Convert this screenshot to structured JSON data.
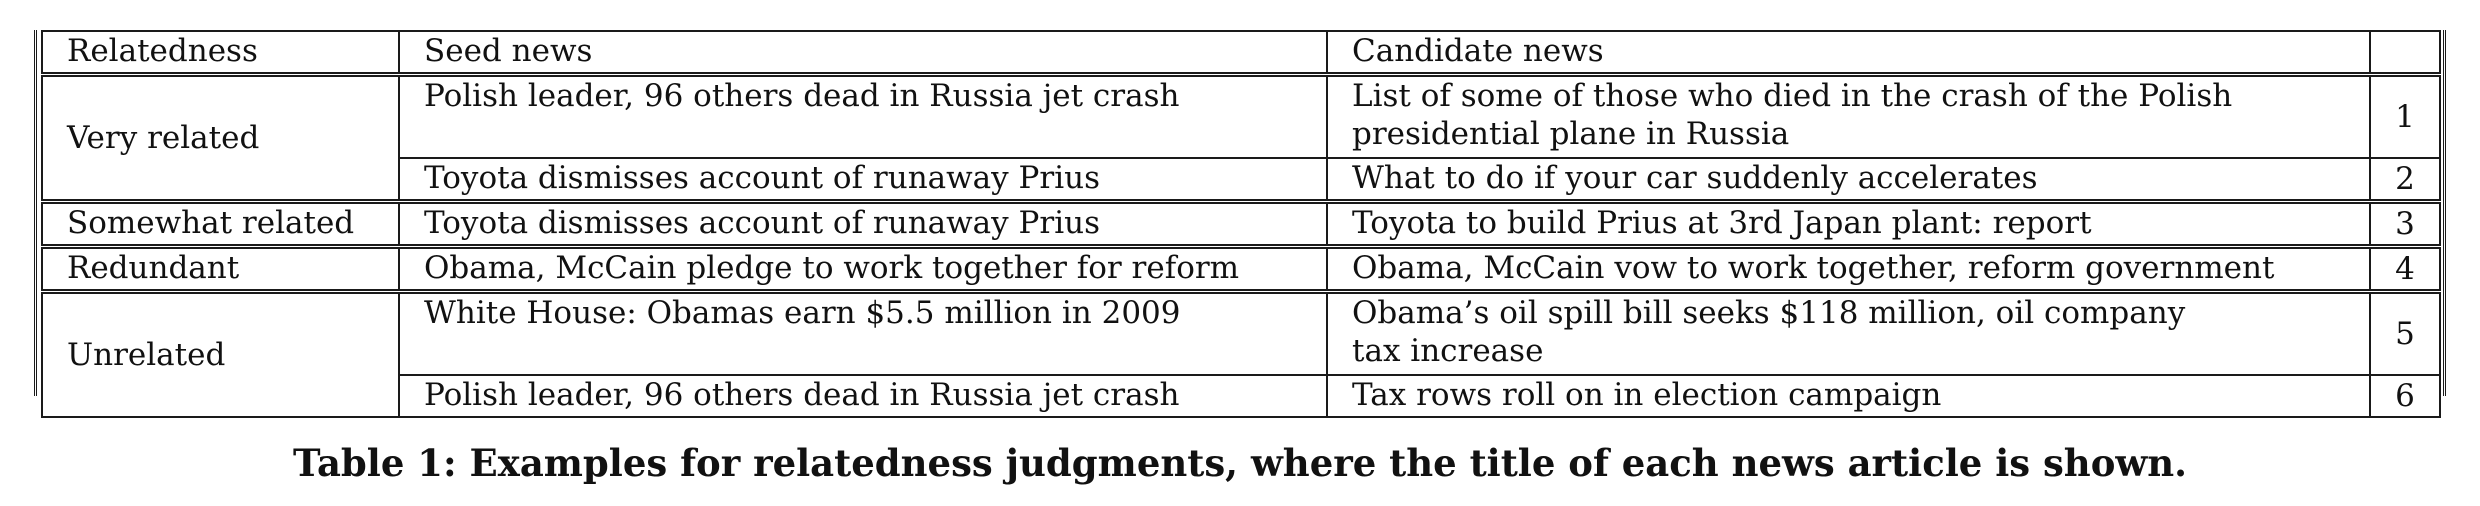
{
  "table": {
    "headers": [
      "Relatedness",
      "Seed news",
      "Candidate news",
      ""
    ],
    "groups": [
      {
        "label": "Very related",
        "rows": [
          {
            "seed": "Polish leader, 96 others dead in Russia jet crash",
            "candidate_line1": "List of some of those who died in the crash of the Polish",
            "candidate_line2": "presidential plane in Russia",
            "id": "1"
          },
          {
            "seed": "Toyota dismisses account of runaway Prius",
            "candidate": "What to do if your car suddenly accelerates",
            "id": "2"
          }
        ]
      },
      {
        "label": "Somewhat related",
        "rows": [
          {
            "seed": "Toyota dismisses account of runaway Prius",
            "candidate": "Toyota to build Prius at 3rd Japan plant: report",
            "id": "3"
          }
        ]
      },
      {
        "label": "Redundant",
        "rows": [
          {
            "seed": "Obama, McCain pledge to work together for reform",
            "candidate": "Obama, McCain vow to work together, reform government",
            "id": "4"
          }
        ]
      },
      {
        "label": "Unrelated",
        "rows": [
          {
            "seed": "White House: Obamas earn $5.5 million in 2009",
            "candidate_line1": "Obama’s oil spill bill seeks $118 million, oil company",
            "candidate_line2": "tax increase",
            "id": "5"
          },
          {
            "seed": "Polish leader, 96 others dead in Russia jet crash",
            "candidate": "Tax rows roll on in election campaign",
            "id": "6"
          }
        ]
      }
    ]
  },
  "caption": "Table 1: Examples for relatedness judgments, where the title of each news article is shown."
}
